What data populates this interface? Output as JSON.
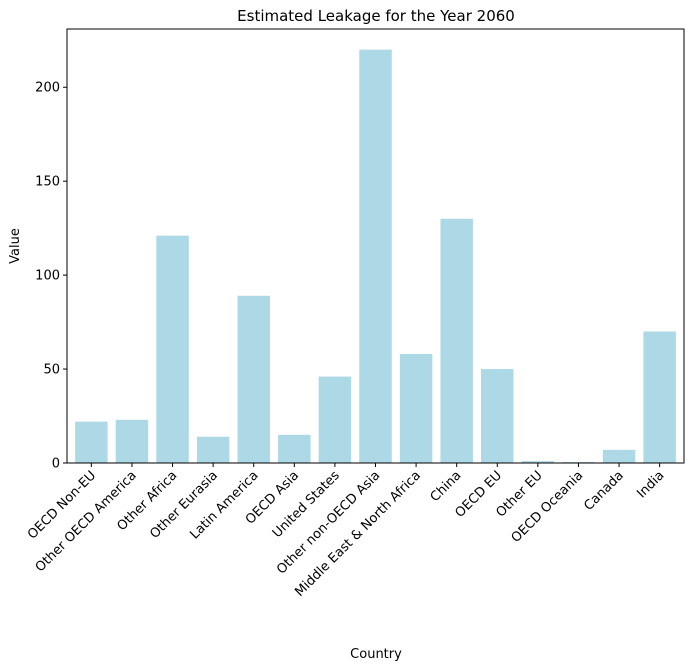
{
  "chart_data": {
    "type": "bar",
    "title": "Estimated Leakage for the Year 2060",
    "xlabel": "Country",
    "ylabel": "Value",
    "categories": [
      "OECD Non-EU",
      "Other OECD America",
      "Other Africa",
      "Other Eurasia",
      "Latin America",
      "OECD Asia",
      "United States",
      "Other non-OECD Asia",
      "Middle East & North Africa",
      "China",
      "OECD EU",
      "Other EU",
      "OECD Oceania",
      "Canada",
      "India"
    ],
    "values": [
      22,
      23,
      121,
      14,
      89,
      15,
      46,
      220,
      58,
      130,
      50,
      1,
      0.5,
      7,
      70
    ],
    "ylim": [
      0,
      231
    ],
    "yticks": [
      0,
      50,
      100,
      150,
      200
    ],
    "grid": false,
    "bar_color": "#add8e6",
    "x_tick_rotation": 45
  }
}
